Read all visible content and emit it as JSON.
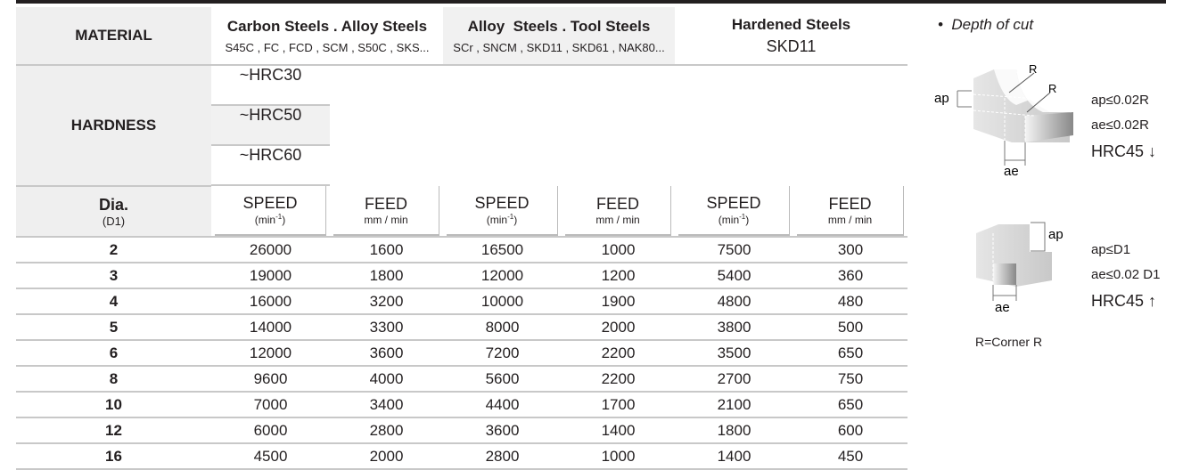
{
  "table": {
    "material_label": "MATERIAL",
    "hardness_label": "HARDNESS",
    "dia_label": "Dia.",
    "dia_sub": "(D1)",
    "groups": [
      {
        "name": "Carbon Steels . Alloy Steels",
        "grades": "S45C , FC , FCD , SCM , S50C , SKS...",
        "hardness": "~HRC30"
      },
      {
        "name": "Alloy  Steels . Tool Steels",
        "grades": "SCr , SNCM , SKD11 , SKD61 , NAK80...",
        "hardness": "~HRC50"
      },
      {
        "name": "Hardened Steels",
        "grades": "SKD11",
        "hardness": "~HRC60"
      }
    ],
    "speed_label": "SPEED",
    "speed_unit": "(min",
    "speed_exp": "-1",
    "speed_close": ")",
    "feed_label": "FEED",
    "feed_unit": "mm / min",
    "rows": [
      [
        "2",
        "26000",
        "1600",
        "16500",
        "1000",
        "7500",
        "300"
      ],
      [
        "3",
        "19000",
        "1800",
        "12000",
        "1200",
        "5400",
        "360"
      ],
      [
        "4",
        "16000",
        "3200",
        "10000",
        "1900",
        "4800",
        "480"
      ],
      [
        "5",
        "14000",
        "3300",
        "8000",
        "2000",
        "3800",
        "500"
      ],
      [
        "6",
        "12000",
        "3600",
        "7200",
        "2200",
        "3500",
        "650"
      ],
      [
        "8",
        "9600",
        "4000",
        "5600",
        "2200",
        "2700",
        "750"
      ],
      [
        "10",
        "7000",
        "3400",
        "4400",
        "1700",
        "2100",
        "650"
      ],
      [
        "12",
        "6000",
        "2800",
        "3600",
        "1400",
        "1800",
        "600"
      ],
      [
        "16",
        "4500",
        "2000",
        "2800",
        "1000",
        "1400",
        "450"
      ]
    ]
  },
  "side": {
    "title": "Depth of cut",
    "bullet": "•",
    "fig1": {
      "r1": "R",
      "r2": "R",
      "ap": "ap",
      "ae": "ae",
      "c1": "ap≤0.02R",
      "c2": "ae≤0.02R",
      "c3": "HRC45 ↓"
    },
    "fig2": {
      "ap": "ap",
      "ae": "ae",
      "c1": "ap≤D1",
      "c2": "ae≤0.02 D1",
      "c3": "HRC45 ↑"
    },
    "footnote": "R=Corner R"
  }
}
